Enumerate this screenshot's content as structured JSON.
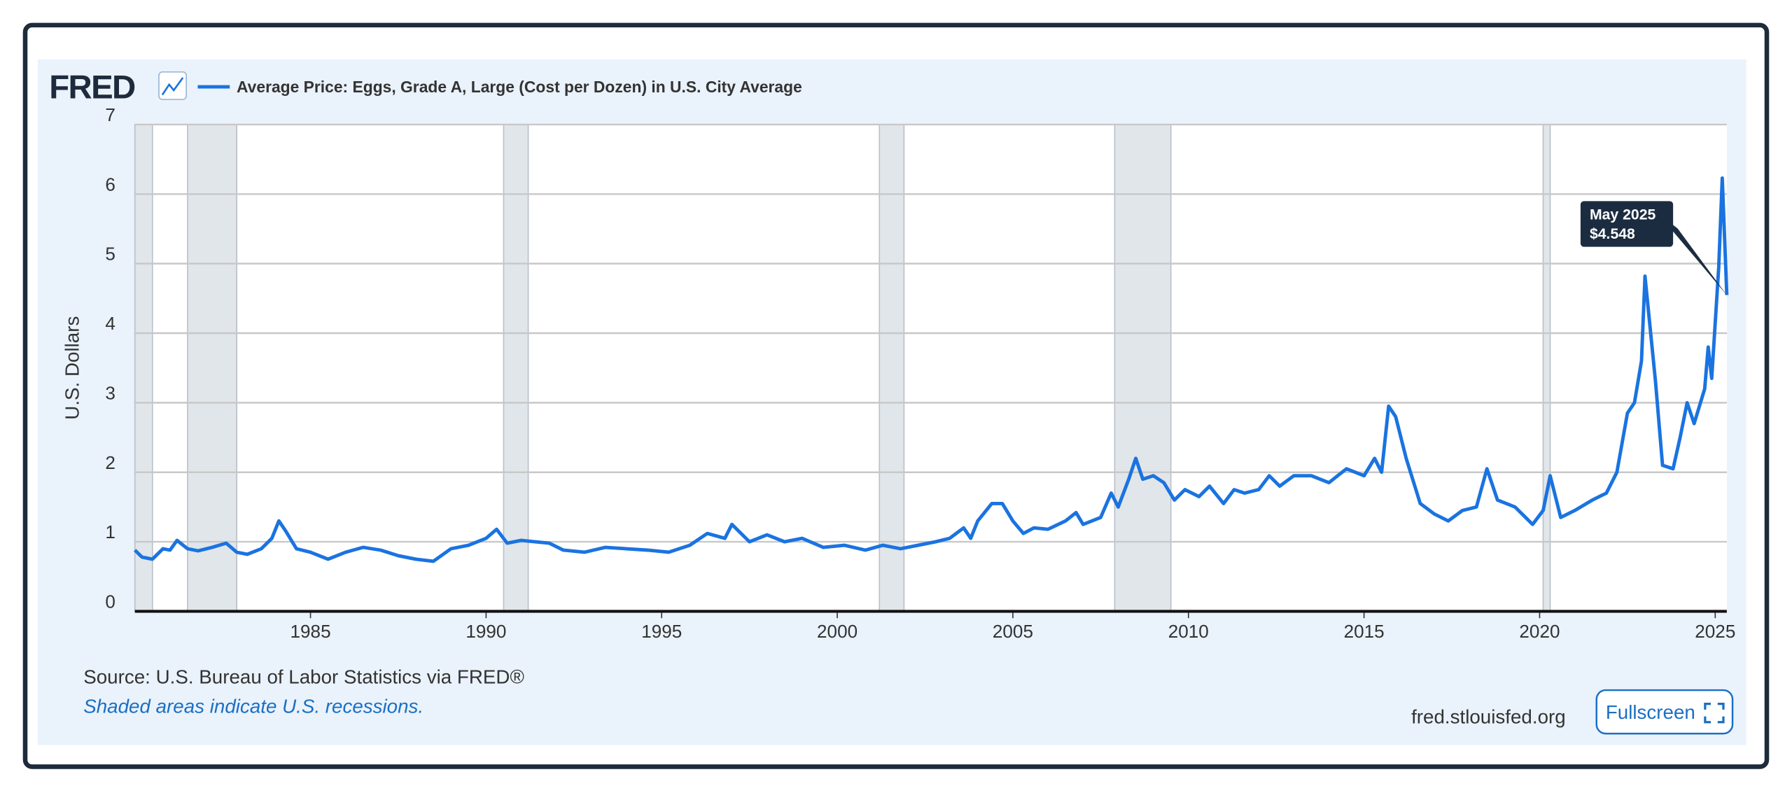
{
  "chart_data": {
    "type": "line",
    "logo": "FRED",
    "title": "Average Price: Eggs, Grade A, Large (Cost per Dozen) in U.S. City Average",
    "y_label": "U.S. Dollars",
    "xlim": [
      1980,
      2025.33
    ],
    "xticks": [
      1985,
      1990,
      1995,
      2000,
      2005,
      2010,
      2015,
      2020,
      2025
    ],
    "ylim": [
      0,
      7
    ],
    "yticks": [
      0,
      1,
      2,
      3,
      4,
      5,
      6,
      7
    ],
    "grid": true,
    "recessions": [
      [
        1980.0,
        1980.5
      ],
      [
        1981.5,
        1982.9
      ],
      [
        1990.5,
        1991.2
      ],
      [
        2001.2,
        2001.9
      ],
      [
        2007.9,
        2009.5
      ],
      [
        2020.1,
        2020.3
      ]
    ],
    "series": [
      {
        "name": "Average Price: Eggs, Grade A, Large (Cost per Dozen) in U.S. City Average",
        "color": "#1a73e0",
        "x": [
          1980.0,
          1980.2,
          1980.5,
          1980.8,
          1981.0,
          1981.2,
          1981.5,
          1981.8,
          1982.2,
          1982.6,
          1982.9,
          1983.2,
          1983.6,
          1983.9,
          1984.1,
          1984.3,
          1984.6,
          1985.0,
          1985.5,
          1986.0,
          1986.5,
          1987.0,
          1987.5,
          1988.0,
          1988.5,
          1989.0,
          1989.5,
          1990.0,
          1990.3,
          1990.6,
          1991.0,
          1991.4,
          1991.8,
          1992.2,
          1992.8,
          1993.4,
          1994.0,
          1994.6,
          1995.2,
          1995.8,
          1996.3,
          1996.8,
          1997.0,
          1997.5,
          1998.0,
          1998.5,
          1999.0,
          1999.6,
          2000.2,
          2000.8,
          2001.3,
          2001.8,
          2002.3,
          2002.8,
          2003.2,
          2003.6,
          2003.8,
          2004.0,
          2004.4,
          2004.7,
          2005.0,
          2005.3,
          2005.6,
          2006.0,
          2006.5,
          2006.8,
          2007.0,
          2007.5,
          2007.8,
          2008.0,
          2008.3,
          2008.5,
          2008.7,
          2009.0,
          2009.3,
          2009.6,
          2009.9,
          2010.3,
          2010.6,
          2011.0,
          2011.3,
          2011.6,
          2012.0,
          2012.3,
          2012.6,
          2013.0,
          2013.5,
          2014.0,
          2014.5,
          2015.0,
          2015.3,
          2015.5,
          2015.7,
          2015.9,
          2016.2,
          2016.6,
          2017.0,
          2017.4,
          2017.8,
          2018.2,
          2018.5,
          2018.8,
          2019.3,
          2019.8,
          2020.1,
          2020.3,
          2020.6,
          2021.0,
          2021.5,
          2021.9,
          2022.2,
          2022.5,
          2022.7,
          2022.9,
          2023.0,
          2023.3,
          2023.5,
          2023.8,
          2024.0,
          2024.2,
          2024.4,
          2024.7,
          2024.8,
          2024.9,
          2025.0,
          2025.1,
          2025.2,
          2025.33
        ],
        "values": [
          0.88,
          0.78,
          0.75,
          0.9,
          0.88,
          1.02,
          0.9,
          0.87,
          0.92,
          0.98,
          0.85,
          0.82,
          0.9,
          1.05,
          1.3,
          1.15,
          0.9,
          0.85,
          0.75,
          0.85,
          0.92,
          0.88,
          0.8,
          0.75,
          0.72,
          0.9,
          0.95,
          1.05,
          1.18,
          0.98,
          1.02,
          1.0,
          0.98,
          0.88,
          0.85,
          0.92,
          0.9,
          0.88,
          0.85,
          0.95,
          1.12,
          1.05,
          1.25,
          1.0,
          1.1,
          1.0,
          1.05,
          0.92,
          0.95,
          0.88,
          0.95,
          0.9,
          0.95,
          1.0,
          1.05,
          1.2,
          1.05,
          1.3,
          1.55,
          1.55,
          1.3,
          1.12,
          1.2,
          1.18,
          1.3,
          1.42,
          1.25,
          1.35,
          1.7,
          1.5,
          1.9,
          2.2,
          1.9,
          1.95,
          1.85,
          1.6,
          1.75,
          1.65,
          1.8,
          1.55,
          1.75,
          1.7,
          1.75,
          1.95,
          1.8,
          1.95,
          1.95,
          1.85,
          2.05,
          1.95,
          2.2,
          2.0,
          2.95,
          2.8,
          2.2,
          1.55,
          1.4,
          1.3,
          1.45,
          1.5,
          2.05,
          1.6,
          1.5,
          1.25,
          1.45,
          1.95,
          1.35,
          1.45,
          1.6,
          1.7,
          2.0,
          2.85,
          3.0,
          3.6,
          4.82,
          3.3,
          2.1,
          2.05,
          2.5,
          3.0,
          2.7,
          3.2,
          3.8,
          3.35,
          4.15,
          4.95,
          6.23,
          4.548
        ]
      }
    ],
    "tooltip_date": "May 2025",
    "tooltip_value": "$4.548",
    "source": "Source: U.S. Bureau of Labor Statistics via FRED®",
    "note": "Shaded areas indicate U.S. recessions.",
    "site": "fred.stlouisfed.org",
    "button": "Fullscreen"
  }
}
